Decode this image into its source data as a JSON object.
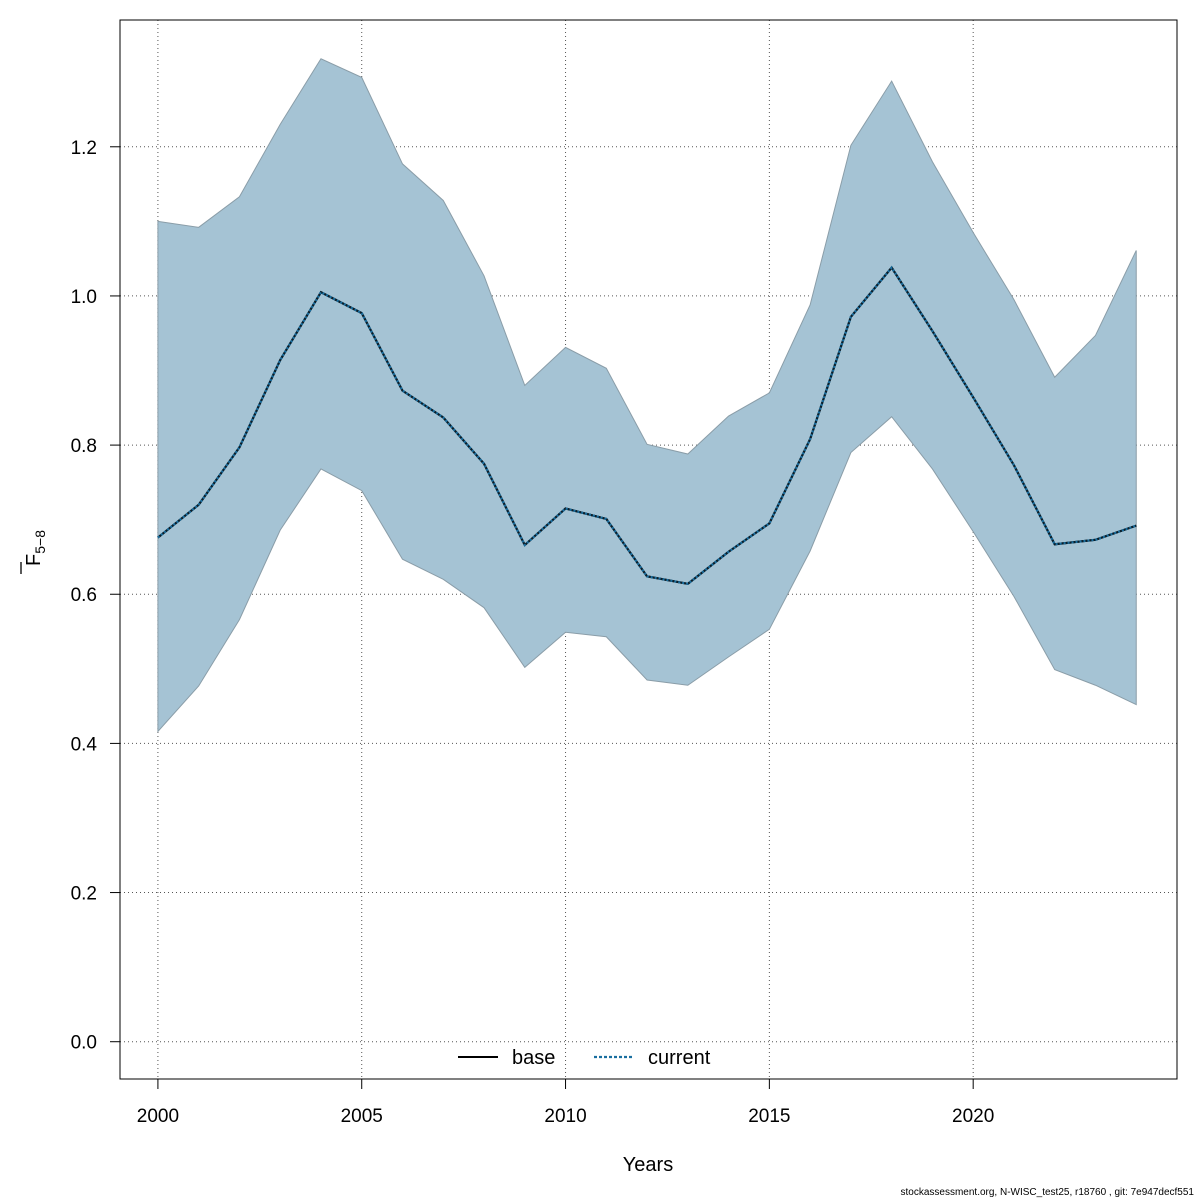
{
  "chart_data": {
    "type": "area",
    "xlabel": "Years",
    "ylabel_main": "F",
    "ylabel_sub": "5−8",
    "xlim": [
      1999.07,
      2025.0
    ],
    "ylim": [
      -0.05,
      1.37
    ],
    "x_ticks": [
      2000,
      2005,
      2010,
      2015,
      2020
    ],
    "y_ticks": [
      0.0,
      0.2,
      0.4,
      0.6,
      0.8,
      1.0,
      1.2
    ],
    "y_tick_labels": [
      "0.0",
      "0.2",
      "0.4",
      "0.6",
      "0.8",
      "1.0",
      "1.2"
    ],
    "grid": true,
    "legend_position": "bottom",
    "x": [
      2000,
      2001,
      2002,
      2003,
      2004,
      2005,
      2006,
      2007,
      2008,
      2009,
      2010,
      2011,
      2012,
      2013,
      2014,
      2015,
      2016,
      2017,
      2018,
      2019,
      2020,
      2021,
      2022,
      2023,
      2024
    ],
    "band_upper": [
      1.1,
      1.092,
      1.133,
      1.23,
      1.318,
      1.293,
      1.177,
      1.128,
      1.027,
      0.88,
      0.931,
      0.903,
      0.801,
      0.788,
      0.839,
      0.87,
      0.988,
      1.202,
      1.288,
      1.18,
      1.085,
      0.995,
      0.891,
      0.947,
      1.061
    ],
    "band_lower": [
      0.416,
      0.477,
      0.566,
      0.686,
      0.768,
      0.739,
      0.647,
      0.62,
      0.582,
      0.502,
      0.549,
      0.543,
      0.485,
      0.478,
      0.516,
      0.553,
      0.658,
      0.79,
      0.838,
      0.768,
      0.684,
      0.597,
      0.499,
      0.478,
      0.452
    ],
    "band_color": "#a5c3d4",
    "band_edge_color": "#8a9da8",
    "series": [
      {
        "name": "base",
        "line_style": "solid",
        "color": "#000000",
        "values": [
          0.676,
          0.72,
          0.797,
          0.914,
          1.005,
          0.977,
          0.873,
          0.837,
          0.775,
          0.666,
          0.715,
          0.701,
          0.624,
          0.614,
          0.657,
          0.695,
          0.808,
          0.972,
          1.038,
          0.953,
          0.864,
          0.773,
          0.667,
          0.673,
          0.692
        ]
      },
      {
        "name": "current",
        "line_style": "dotted",
        "color": "#1a6fa0",
        "values": [
          0.676,
          0.72,
          0.797,
          0.914,
          1.005,
          0.977,
          0.873,
          0.837,
          0.775,
          0.666,
          0.715,
          0.701,
          0.624,
          0.614,
          0.657,
          0.695,
          0.808,
          0.972,
          1.038,
          0.953,
          0.864,
          0.773,
          0.667,
          0.673,
          0.692
        ]
      }
    ]
  },
  "footer": "stockassessment.org, N-WISC_test25, r18760 , git: 7e947decf551"
}
